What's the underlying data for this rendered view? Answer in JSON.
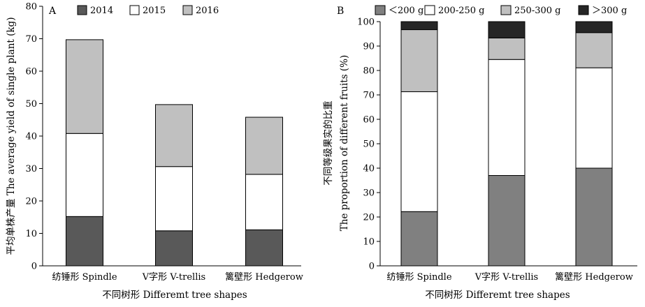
{
  "chart_data": [
    {
      "type": "bar",
      "stacked": true,
      "panel_label": "A",
      "categories": [
        "纺锤形 Spindle",
        "V字形 V-trellis",
        "篱壁形 Hedgerow"
      ],
      "series": [
        {
          "name": "2014",
          "values": [
            15.2,
            10.8,
            11.1
          ],
          "color": "#595959"
        },
        {
          "name": "2015",
          "values": [
            25.6,
            19.8,
            17.1
          ],
          "color": "#ffffff"
        },
        {
          "name": "2016",
          "values": [
            28.9,
            19.1,
            17.6
          ],
          "color": "#c0c0c0"
        }
      ],
      "xlabel": "不同树形 Differemt tree shapes",
      "ylabel": "平均单株产量 The average yield of single plant (kg)",
      "ylim": [
        0,
        80
      ],
      "yticks": [
        "0",
        "10",
        "20",
        "30",
        "40",
        "50",
        "60",
        "70",
        "80"
      ],
      "legend": "top",
      "grid": false
    },
    {
      "type": "bar",
      "stacked": true,
      "panel_label": "B",
      "categories": [
        "纺锤形 Spindle",
        "V字形 V-trellis",
        "篱壁形 Hedgerow"
      ],
      "series": [
        {
          "name": "＜200 g",
          "values": [
            22.2,
            37.0,
            40.0
          ],
          "color": "#808080"
        },
        {
          "name": "200-250 g",
          "values": [
            49.1,
            47.5,
            41.1
          ],
          "color": "#ffffff"
        },
        {
          "name": "250-300 g",
          "values": [
            25.4,
            8.8,
            14.4
          ],
          "color": "#c0c0c0"
        },
        {
          "name": "＞300 g",
          "values": [
            3.3,
            6.7,
            4.5
          ],
          "color": "#262626"
        }
      ],
      "xlabel": "不同树形 Differemt tree shapes",
      "ylabel": "不同等级果实的比重",
      "ylabel2": "The proportion of different fruits (%)",
      "ylim": [
        0,
        100
      ],
      "yticks": [
        "0",
        "10",
        "20",
        "30",
        "40",
        "50",
        "60",
        "70",
        "80",
        "90",
        "100"
      ],
      "legend": "top",
      "grid": false
    }
  ]
}
